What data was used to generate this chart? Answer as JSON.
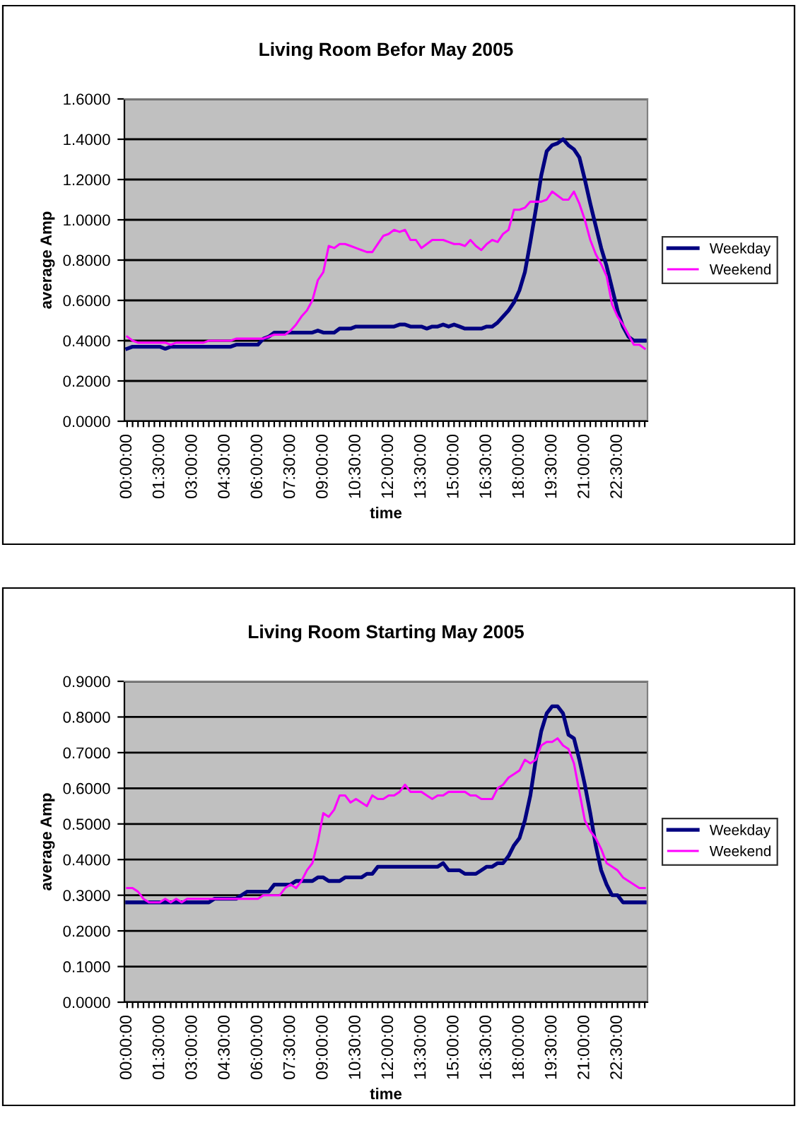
{
  "chart_data": [
    {
      "type": "line",
      "title": "Living Room Befor May 2005",
      "xlabel": "time",
      "ylabel": "average Amp",
      "categories": [
        "00:00:00",
        null,
        null,
        null,
        null,
        null,
        "01:30:00",
        null,
        null,
        null,
        null,
        null,
        "03:00:00",
        null,
        null,
        null,
        null,
        null,
        "04:30:00",
        null,
        null,
        null,
        null,
        null,
        "06:00:00",
        null,
        null,
        null,
        null,
        null,
        "07:30:00",
        null,
        null,
        null,
        null,
        null,
        "09:00:00",
        null,
        null,
        null,
        null,
        null,
        "10:30:00",
        null,
        null,
        null,
        null,
        null,
        "12:00:00",
        null,
        null,
        null,
        null,
        null,
        "13:30:00",
        null,
        null,
        null,
        null,
        null,
        "15:00:00",
        null,
        null,
        null,
        null,
        null,
        "16:30:00",
        null,
        null,
        null,
        null,
        null,
        "18:00:00",
        null,
        null,
        null,
        null,
        null,
        "19:30:00",
        null,
        null,
        null,
        null,
        null,
        "21:00:00",
        null,
        null,
        null,
        null,
        null,
        "22:30:00",
        null,
        null,
        null,
        null,
        null
      ],
      "series": [
        {
          "name": "Weekday",
          "color": "#000080",
          "values": [
            0.36,
            0.37,
            0.37,
            0.37,
            0.37,
            0.37,
            0.37,
            0.36,
            0.37,
            0.37,
            0.37,
            0.37,
            0.37,
            0.37,
            0.37,
            0.37,
            0.37,
            0.37,
            0.37,
            0.37,
            0.38,
            0.38,
            0.38,
            0.38,
            0.38,
            0.41,
            0.42,
            0.44,
            0.44,
            0.44,
            0.44,
            0.44,
            0.44,
            0.44,
            0.44,
            0.45,
            0.44,
            0.44,
            0.44,
            0.46,
            0.46,
            0.46,
            0.47,
            0.47,
            0.47,
            0.47,
            0.47,
            0.47,
            0.47,
            0.47,
            0.48,
            0.48,
            0.47,
            0.47,
            0.47,
            0.46,
            0.47,
            0.47,
            0.48,
            0.47,
            0.48,
            0.47,
            0.46,
            0.46,
            0.46,
            0.46,
            0.47,
            0.47,
            0.49,
            0.52,
            0.55,
            0.59,
            0.65,
            0.74,
            0.89,
            1.05,
            1.22,
            1.34,
            1.37,
            1.38,
            1.4,
            1.37,
            1.35,
            1.31,
            1.2,
            1.08,
            0.97,
            0.86,
            0.77,
            0.66,
            0.55,
            0.47,
            0.42,
            0.4,
            0.4,
            0.4
          ]
        },
        {
          "name": "Weekend",
          "color": "#ff00ff",
          "values": [
            0.42,
            0.4,
            0.39,
            0.39,
            0.39,
            0.39,
            0.39,
            0.39,
            0.38,
            0.39,
            0.39,
            0.39,
            0.39,
            0.39,
            0.39,
            0.4,
            0.4,
            0.4,
            0.4,
            0.4,
            0.41,
            0.41,
            0.41,
            0.41,
            0.41,
            0.41,
            0.42,
            0.43,
            0.43,
            0.43,
            0.45,
            0.48,
            0.52,
            0.55,
            0.6,
            0.7,
            0.74,
            0.87,
            0.86,
            0.88,
            0.88,
            0.87,
            0.86,
            0.85,
            0.84,
            0.84,
            0.88,
            0.92,
            0.93,
            0.95,
            0.94,
            0.95,
            0.9,
            0.9,
            0.86,
            0.88,
            0.9,
            0.9,
            0.9,
            0.89,
            0.88,
            0.88,
            0.87,
            0.9,
            0.87,
            0.85,
            0.88,
            0.9,
            0.89,
            0.93,
            0.95,
            1.05,
            1.05,
            1.06,
            1.09,
            1.09,
            1.09,
            1.1,
            1.14,
            1.12,
            1.1,
            1.1,
            1.14,
            1.08,
            1.0,
            0.9,
            0.83,
            0.78,
            0.72,
            0.58,
            0.52,
            0.48,
            0.43,
            0.38,
            0.38,
            0.36
          ]
        }
      ],
      "ylim": [
        0,
        1.6
      ],
      "yticks": [
        {
          "value": 0,
          "label": "0.0000"
        },
        {
          "value": 0.2,
          "label": "0.2000"
        },
        {
          "value": 0.4,
          "label": "0.4000"
        },
        {
          "value": 0.6,
          "label": "0.6000"
        },
        {
          "value": 0.8,
          "label": "0.8000"
        },
        {
          "value": 1.0,
          "label": "1.0000"
        },
        {
          "value": 1.2,
          "label": "1.2000"
        },
        {
          "value": 1.4,
          "label": "1.4000"
        },
        {
          "value": 1.6,
          "label": "1.6000"
        }
      ],
      "grid": "y",
      "legend": "right",
      "marker": "none",
      "line_style": "solid"
    },
    {
      "type": "line",
      "title": "Living Room Starting May 2005",
      "xlabel": "time",
      "ylabel": "average Amp",
      "categories": [
        "00:00:00",
        null,
        null,
        null,
        null,
        null,
        "01:30:00",
        null,
        null,
        null,
        null,
        null,
        "03:00:00",
        null,
        null,
        null,
        null,
        null,
        "04:30:00",
        null,
        null,
        null,
        null,
        null,
        "06:00:00",
        null,
        null,
        null,
        null,
        null,
        "07:30:00",
        null,
        null,
        null,
        null,
        null,
        "09:00:00",
        null,
        null,
        null,
        null,
        null,
        "10:30:00",
        null,
        null,
        null,
        null,
        null,
        "12:00:00",
        null,
        null,
        null,
        null,
        null,
        "13:30:00",
        null,
        null,
        null,
        null,
        null,
        "15:00:00",
        null,
        null,
        null,
        null,
        null,
        "16:30:00",
        null,
        null,
        null,
        null,
        null,
        "18:00:00",
        null,
        null,
        null,
        null,
        null,
        "19:30:00",
        null,
        null,
        null,
        null,
        null,
        "21:00:00",
        null,
        null,
        null,
        null,
        null,
        "22:30:00",
        null,
        null,
        null,
        null,
        null
      ],
      "series": [
        {
          "name": "Weekday",
          "color": "#000080",
          "values": [
            0.28,
            0.28,
            0.28,
            0.28,
            0.28,
            0.28,
            0.28,
            0.28,
            0.28,
            0.28,
            0.28,
            0.28,
            0.28,
            0.28,
            0.28,
            0.28,
            0.29,
            0.29,
            0.29,
            0.29,
            0.29,
            0.3,
            0.31,
            0.31,
            0.31,
            0.31,
            0.31,
            0.33,
            0.33,
            0.33,
            0.33,
            0.34,
            0.34,
            0.34,
            0.34,
            0.35,
            0.35,
            0.34,
            0.34,
            0.34,
            0.35,
            0.35,
            0.35,
            0.35,
            0.36,
            0.36,
            0.38,
            0.38,
            0.38,
            0.38,
            0.38,
            0.38,
            0.38,
            0.38,
            0.38,
            0.38,
            0.38,
            0.38,
            0.39,
            0.37,
            0.37,
            0.37,
            0.36,
            0.36,
            0.36,
            0.37,
            0.38,
            0.38,
            0.39,
            0.39,
            0.41,
            0.44,
            0.46,
            0.51,
            0.58,
            0.68,
            0.76,
            0.81,
            0.83,
            0.83,
            0.81,
            0.75,
            0.74,
            0.68,
            0.61,
            0.53,
            0.44,
            0.37,
            0.33,
            0.3,
            0.3,
            0.28,
            0.28,
            0.28,
            0.28,
            0.28
          ]
        },
        {
          "name": "Weekend",
          "color": "#ff00ff",
          "values": [
            0.32,
            0.32,
            0.31,
            0.29,
            0.28,
            0.28,
            0.28,
            0.29,
            0.28,
            0.29,
            0.28,
            0.29,
            0.29,
            0.29,
            0.29,
            0.29,
            0.29,
            0.29,
            0.29,
            0.29,
            0.29,
            0.29,
            0.29,
            0.29,
            0.29,
            0.3,
            0.3,
            0.3,
            0.3,
            0.32,
            0.33,
            0.32,
            0.34,
            0.37,
            0.39,
            0.45,
            0.53,
            0.52,
            0.54,
            0.58,
            0.58,
            0.56,
            0.57,
            0.56,
            0.55,
            0.58,
            0.57,
            0.57,
            0.58,
            0.58,
            0.59,
            0.61,
            0.59,
            0.59,
            0.59,
            0.58,
            0.57,
            0.58,
            0.58,
            0.59,
            0.59,
            0.59,
            0.59,
            0.58,
            0.58,
            0.57,
            0.57,
            0.57,
            0.6,
            0.61,
            0.63,
            0.64,
            0.65,
            0.68,
            0.67,
            0.68,
            0.72,
            0.73,
            0.73,
            0.74,
            0.72,
            0.71,
            0.67,
            0.59,
            0.51,
            0.48,
            0.46,
            0.43,
            0.39,
            0.38,
            0.37,
            0.35,
            0.34,
            0.33,
            0.32,
            0.32
          ]
        }
      ],
      "ylim": [
        0,
        0.9
      ],
      "yticks": [
        {
          "value": 0,
          "label": "0.0000"
        },
        {
          "value": 0.1,
          "label": "0.1000"
        },
        {
          "value": 0.2,
          "label": "0.2000"
        },
        {
          "value": 0.3,
          "label": "0.3000"
        },
        {
          "value": 0.4,
          "label": "0.4000"
        },
        {
          "value": 0.5,
          "label": "0.5000"
        },
        {
          "value": 0.6,
          "label": "0.6000"
        },
        {
          "value": 0.7,
          "label": "0.7000"
        },
        {
          "value": 0.8,
          "label": "0.8000"
        },
        {
          "value": 0.9,
          "label": "0.9000"
        }
      ],
      "grid": "y",
      "legend": "right",
      "marker": "none",
      "line_style": "solid"
    }
  ]
}
